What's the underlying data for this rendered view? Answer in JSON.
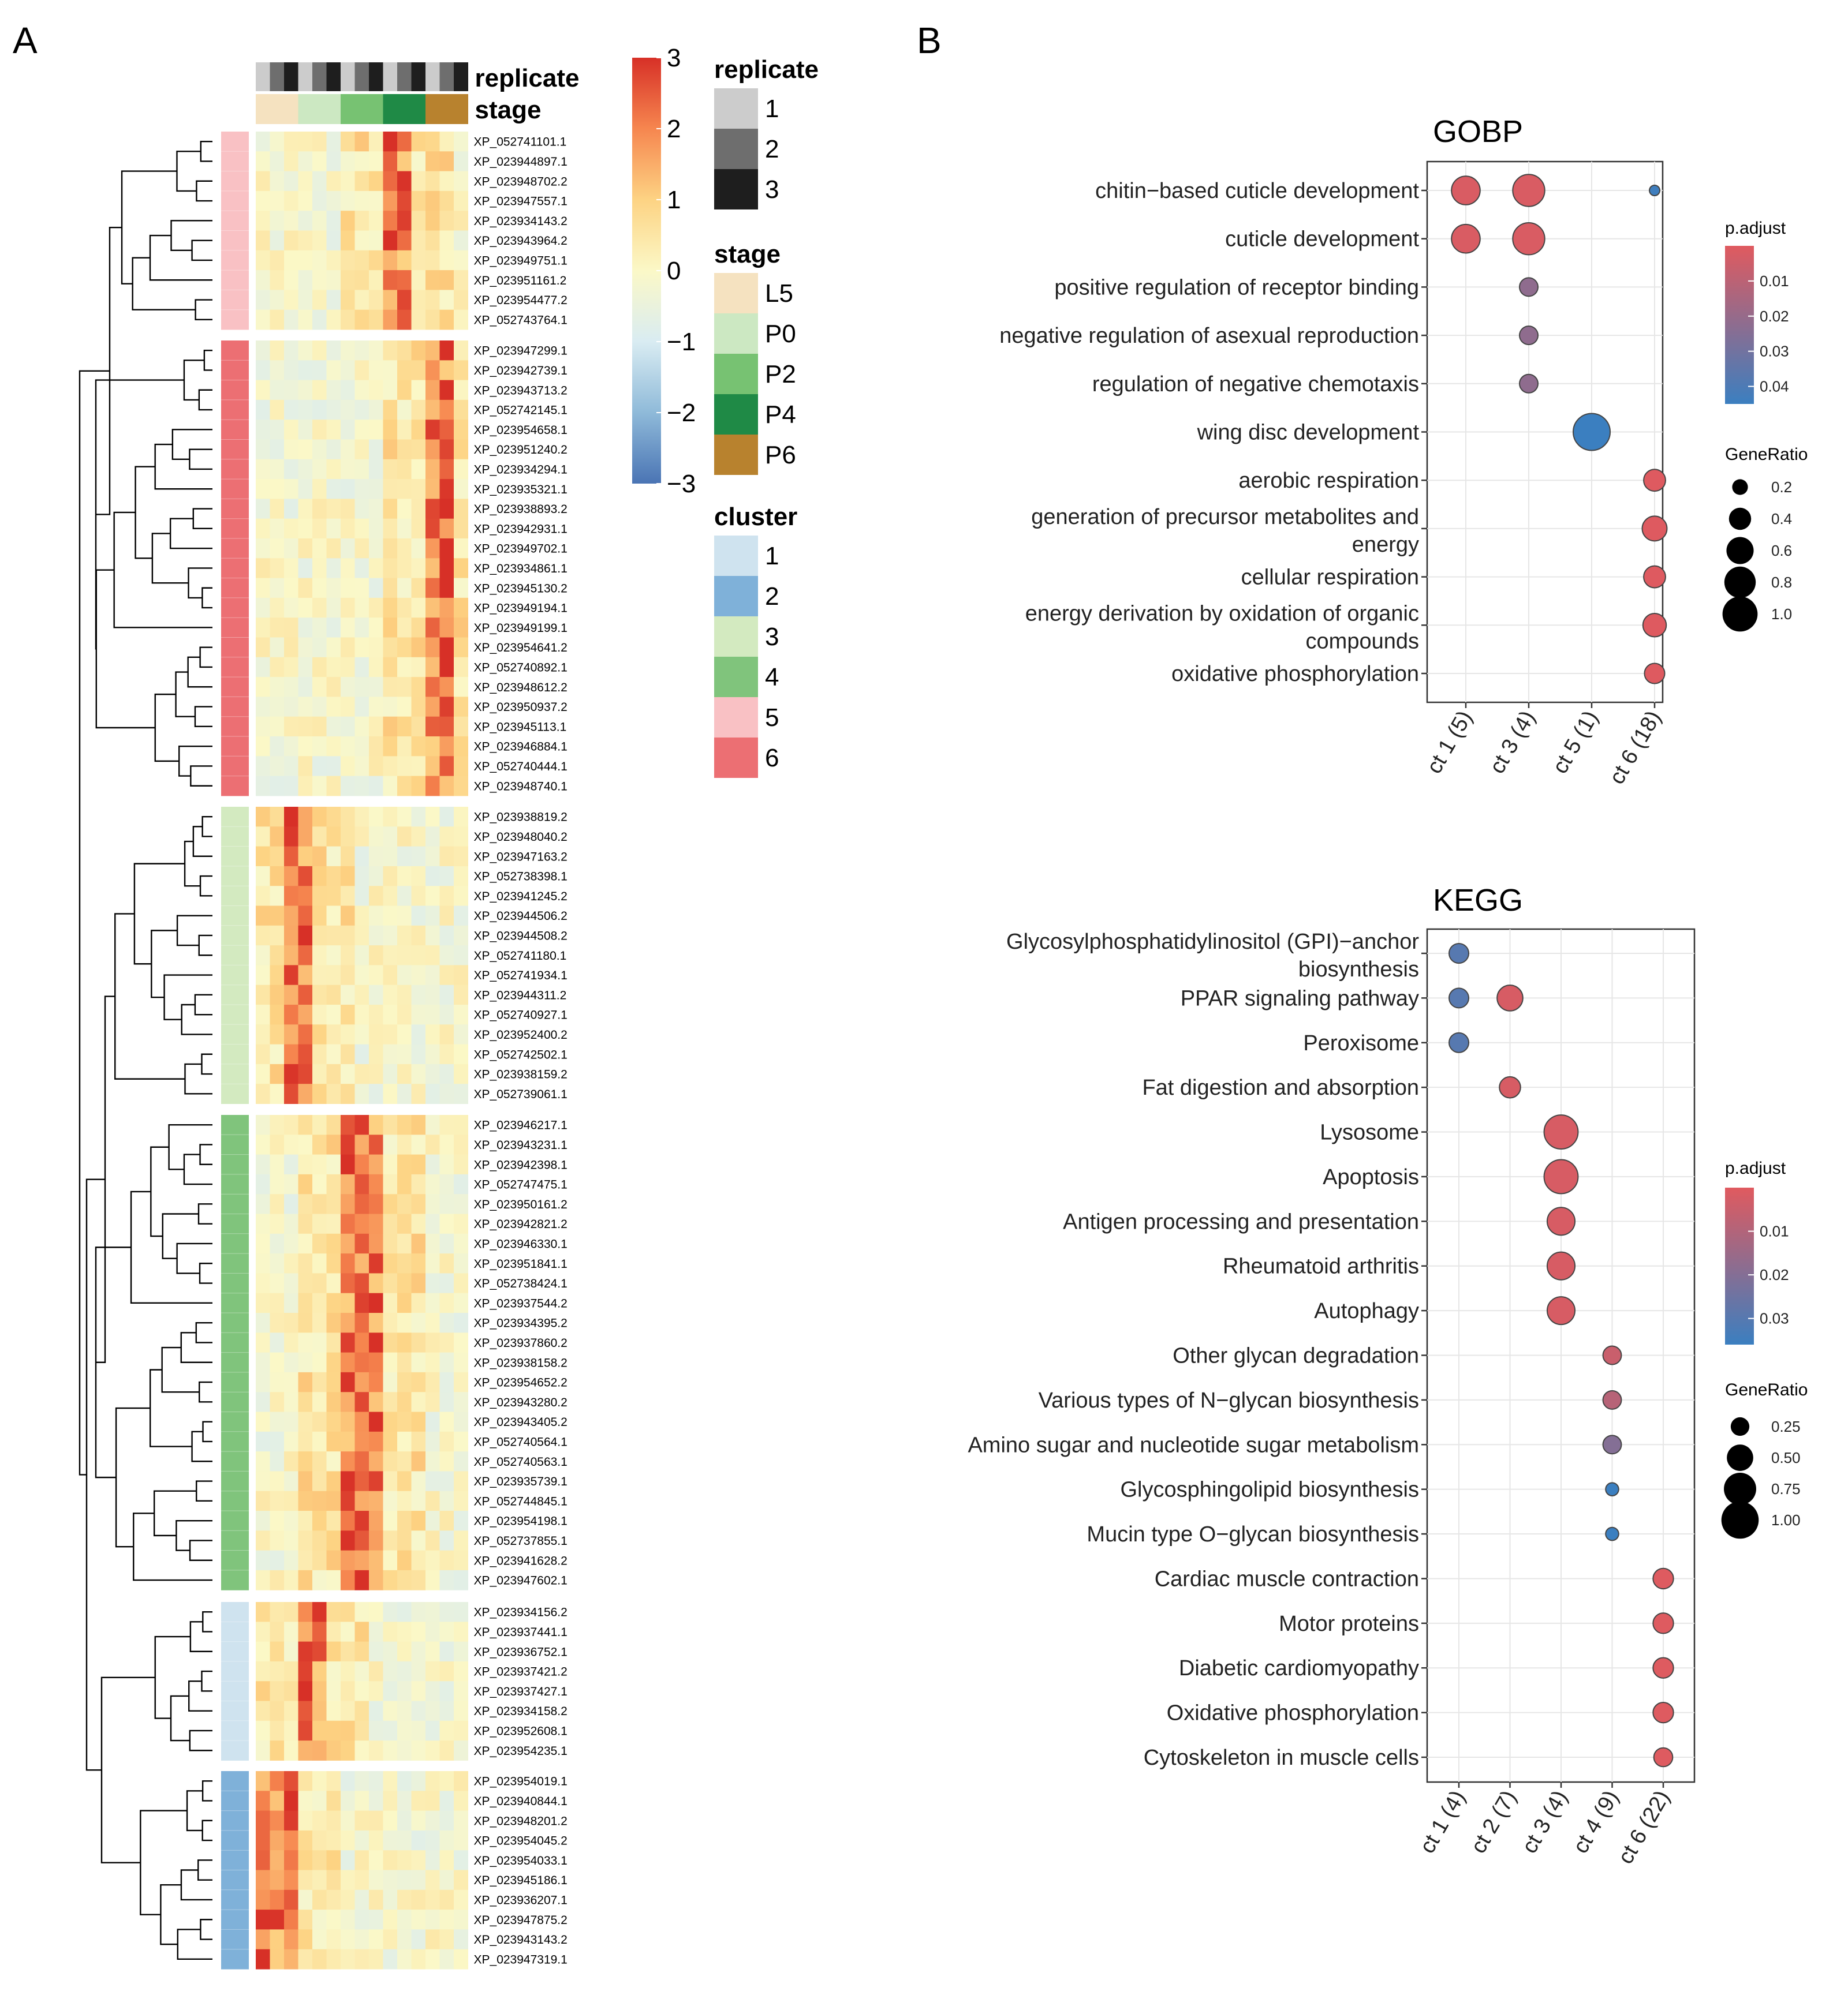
{
  "panel_a_letter": "A",
  "panel_b_letter": "B",
  "chart_data": [
    {
      "type": "heatmap",
      "title": "",
      "column_annotations": {
        "replicate_title": "replicate",
        "stage_title": "stage",
        "replicate": [
          1,
          2,
          3,
          1,
          2,
          3,
          1,
          2,
          3,
          1,
          2,
          3,
          1,
          2,
          3
        ],
        "stage": [
          "L5",
          "L5",
          "L5",
          "P0",
          "P0",
          "P0",
          "P2",
          "P2",
          "P2",
          "P4",
          "P4",
          "P4",
          "P6",
          "P6",
          "P6"
        ]
      },
      "color_scale": {
        "min": -3,
        "max": 3,
        "ticks": [
          3,
          2,
          1,
          0,
          -1,
          -2,
          -3
        ]
      },
      "legends": {
        "replicate": {
          "title": "replicate",
          "items": [
            {
              "label": "1",
              "color": "#cccccc"
            },
            {
              "label": "2",
              "color": "#6e6e6e"
            },
            {
              "label": "3",
              "color": "#1e1e1e"
            }
          ]
        },
        "stage": {
          "title": "stage",
          "items": [
            {
              "label": "L5",
              "color": "#f5e2c0"
            },
            {
              "label": "P0",
              "color": "#cce8c2"
            },
            {
              "label": "P2",
              "color": "#77c272"
            },
            {
              "label": "P4",
              "color": "#1f8a46"
            },
            {
              "label": "P6",
              "color": "#b8822e"
            }
          ]
        },
        "cluster": {
          "title": "cluster",
          "items": [
            {
              "label": "1",
              "color": "#cfe3ef"
            },
            {
              "label": "2",
              "color": "#7fb1d9"
            },
            {
              "label": "3",
              "color": "#d3eac0"
            },
            {
              "label": "4",
              "color": "#80c47c"
            },
            {
              "label": "5",
              "color": "#f9c1c4"
            },
            {
              "label": "6",
              "color": "#ec6f73"
            }
          ]
        }
      },
      "clusters": [
        {
          "cluster": 5,
          "peak": [
            9,
            10
          ],
          "genes": [
            "XP_052741101.1",
            "XP_023944897.1",
            "XP_023948702.2",
            "XP_023947557.1",
            "XP_023934143.2",
            "XP_023943964.2",
            "XP_023949751.1",
            "XP_023951161.2",
            "XP_023954477.2",
            "XP_052743764.1"
          ]
        },
        {
          "cluster": 6,
          "peak": [
            12,
            13
          ],
          "genes": [
            "XP_023947299.1",
            "XP_023942739.1",
            "XP_023943713.2",
            "XP_052742145.1",
            "XP_023954658.1",
            "XP_023951240.2",
            "XP_023934294.1",
            "XP_023935321.1",
            "XP_023938893.2",
            "XP_023942931.1",
            "XP_023949702.1",
            "XP_023934861.1",
            "XP_023945130.2",
            "XP_023949194.1",
            "XP_023949199.1",
            "XP_023954641.2",
            "XP_052740892.1",
            "XP_023948612.2",
            "XP_023950937.2",
            "XP_023945113.1",
            "XP_023946884.1",
            "XP_052740444.1",
            "XP_023948740.1"
          ]
        },
        {
          "cluster": 3,
          "peak": [
            2,
            3
          ],
          "genes": [
            "XP_023938819.2",
            "XP_023948040.2",
            "XP_023947163.2",
            "XP_052738398.1",
            "XP_023941245.2",
            "XP_023944506.2",
            "XP_023944508.2",
            "XP_052741180.1",
            "XP_052741934.1",
            "XP_023944311.2",
            "XP_052740927.1",
            "XP_023952400.2",
            "XP_052742502.1",
            "XP_023938159.2",
            "XP_052739061.1"
          ]
        },
        {
          "cluster": 4,
          "peak": [
            6,
            7,
            8
          ],
          "genes": [
            "XP_023946217.1",
            "XP_023943231.1",
            "XP_023942398.1",
            "XP_052747475.1",
            "XP_023950161.2",
            "XP_023942821.2",
            "XP_023946330.1",
            "XP_023951841.1",
            "XP_052738424.1",
            "XP_023937544.2",
            "XP_023934395.2",
            "XP_023937860.2",
            "XP_023938158.2",
            "XP_023954652.2",
            "XP_023943280.2",
            "XP_023943405.2",
            "XP_052740564.1",
            "XP_052740563.1",
            "XP_023935739.1",
            "XP_052744845.1",
            "XP_023954198.1",
            "XP_052737855.1",
            "XP_023941628.2",
            "XP_023947602.1"
          ]
        },
        {
          "cluster": 1,
          "peak": [
            3,
            4
          ],
          "genes": [
            "XP_023934156.2",
            "XP_023937441.1",
            "XP_023936752.1",
            "XP_023937421.2",
            "XP_023937427.1",
            "XP_023934158.2",
            "XP_023952608.1",
            "XP_023954235.1"
          ]
        },
        {
          "cluster": 2,
          "peak": [
            0,
            1,
            2
          ],
          "genes": [
            "XP_023954019.1",
            "XP_023940844.1",
            "XP_023948201.2",
            "XP_023954045.2",
            "XP_023954033.1",
            "XP_023945186.1",
            "XP_023936207.1",
            "XP_023947875.2",
            "XP_023943143.2",
            "XP_023947319.1"
          ]
        }
      ]
    },
    {
      "type": "scatter",
      "title": "GOBP",
      "categories": [
        "ct 1 (5)",
        "ct 3 (4)",
        "ct 5 (1)",
        "ct 6 (18)"
      ],
      "terms": [
        "chitin−based cuticle development",
        "cuticle development",
        "positive regulation of receptor binding",
        "negative regulation of asexual reproduction",
        "regulation of negative chemotaxis",
        "wing disc development",
        "aerobic respiration",
        "generation of precursor metabolites and energy",
        "cellular respiration",
        "energy derivation by oxidation of organic compounds",
        "oxidative phosphorylation"
      ],
      "points": [
        {
          "term": 0,
          "cat": 0,
          "ratio": 0.6,
          "padj": 0.002
        },
        {
          "term": 0,
          "cat": 1,
          "ratio": 0.75,
          "padj": 0.002
        },
        {
          "term": 0,
          "cat": 3,
          "ratio": 0.06,
          "padj": 0.044
        },
        {
          "term": 1,
          "cat": 0,
          "ratio": 0.6,
          "padj": 0.002
        },
        {
          "term": 1,
          "cat": 1,
          "ratio": 0.75,
          "padj": 0.002
        },
        {
          "term": 2,
          "cat": 1,
          "ratio": 0.25,
          "padj": 0.022
        },
        {
          "term": 3,
          "cat": 1,
          "ratio": 0.25,
          "padj": 0.022
        },
        {
          "term": 4,
          "cat": 1,
          "ratio": 0.25,
          "padj": 0.022
        },
        {
          "term": 5,
          "cat": 2,
          "ratio": 1.0,
          "padj": 0.045
        },
        {
          "term": 6,
          "cat": 3,
          "ratio": 0.35,
          "padj": 0.0005
        },
        {
          "term": 7,
          "cat": 3,
          "ratio": 0.45,
          "padj": 0.0005
        },
        {
          "term": 8,
          "cat": 3,
          "ratio": 0.35,
          "padj": 0.0005
        },
        {
          "term": 9,
          "cat": 3,
          "ratio": 0.4,
          "padj": 0.0005
        },
        {
          "term": 10,
          "cat": 3,
          "ratio": 0.3,
          "padj": 0.0005
        }
      ],
      "color_legend": {
        "title": "p.adjust",
        "min": 0,
        "max": 0.045,
        "ticks": [
          0.01,
          0.02,
          0.03,
          0.04
        ],
        "tick_labels": [
          "0.01",
          "0.02",
          "0.03",
          "0.04"
        ],
        "low_color": "#e05a5f",
        "high_color": "#3b7fc0"
      },
      "size_legend": {
        "title": "GeneRatio",
        "values": [
          0.2,
          0.4,
          0.6,
          0.8,
          1.0
        ],
        "labels": [
          "0.2",
          "0.4",
          "0.6",
          "0.8",
          "1.0"
        ],
        "max": 1.0
      }
    },
    {
      "type": "scatter",
      "title": "KEGG",
      "categories": [
        "ct 1 (4)",
        "ct 2 (7)",
        "ct 3 (4)",
        "ct 4 (9)",
        "ct 6 (22)"
      ],
      "terms": [
        "Glycosylphosphatidylinositol (GPI)−anchor biosynthesis",
        "PPAR signaling pathway",
        "Peroxisome",
        "Fat digestion and absorption",
        "Lysosome",
        "Apoptosis",
        "Antigen processing and presentation",
        "Rheumatoid arthritis",
        "Autophagy",
        "Other glycan degradation",
        "Various types of N−glycan biosynthesis",
        "Amino sugar and nucleotide sugar metabolism",
        "Glycosphingolipid biosynthesis",
        "Mucin type O−glycan biosynthesis",
        "Cardiac muscle contraction",
        "Motor proteins",
        "Diabetic cardiomyopathy",
        "Oxidative phosphorylation",
        "Cytoskeleton in muscle cells"
      ],
      "points": [
        {
          "term": 0,
          "cat": 0,
          "ratio": 0.25,
          "padj": 0.03
        },
        {
          "term": 1,
          "cat": 0,
          "ratio": 0.25,
          "padj": 0.03
        },
        {
          "term": 1,
          "cat": 1,
          "ratio": 0.43,
          "padj": 0.002
        },
        {
          "term": 2,
          "cat": 0,
          "ratio": 0.25,
          "padj": 0.03
        },
        {
          "term": 3,
          "cat": 1,
          "ratio": 0.29,
          "padj": 0.002
        },
        {
          "term": 4,
          "cat": 2,
          "ratio": 0.75,
          "padj": 0.002
        },
        {
          "term": 5,
          "cat": 2,
          "ratio": 0.75,
          "padj": 0.002
        },
        {
          "term": 6,
          "cat": 2,
          "ratio": 0.5,
          "padj": 0.002
        },
        {
          "term": 7,
          "cat": 2,
          "ratio": 0.5,
          "padj": 0.002
        },
        {
          "term": 8,
          "cat": 2,
          "ratio": 0.5,
          "padj": 0.002
        },
        {
          "term": 9,
          "cat": 3,
          "ratio": 0.22,
          "padj": 0.005
        },
        {
          "term": 10,
          "cat": 3,
          "ratio": 0.22,
          "padj": 0.009
        },
        {
          "term": 11,
          "cat": 3,
          "ratio": 0.22,
          "padj": 0.02
        },
        {
          "term": 12,
          "cat": 3,
          "ratio": 0.11,
          "padj": 0.038
        },
        {
          "term": 13,
          "cat": 3,
          "ratio": 0.11,
          "padj": 0.038
        },
        {
          "term": 14,
          "cat": 4,
          "ratio": 0.27,
          "padj": 0.0005
        },
        {
          "term": 15,
          "cat": 4,
          "ratio": 0.27,
          "padj": 0.0005
        },
        {
          "term": 16,
          "cat": 4,
          "ratio": 0.27,
          "padj": 0.0005
        },
        {
          "term": 17,
          "cat": 4,
          "ratio": 0.27,
          "padj": 0.0005
        },
        {
          "term": 18,
          "cat": 4,
          "ratio": 0.23,
          "padj": 0.0005
        }
      ],
      "color_legend": {
        "title": "p.adjust",
        "min": 0,
        "max": 0.036,
        "ticks": [
          0.01,
          0.02,
          0.03
        ],
        "tick_labels": [
          "0.01",
          "0.02",
          "0.03"
        ],
        "low_color": "#e05a5f",
        "high_color": "#3b7fc0"
      },
      "size_legend": {
        "title": "GeneRatio",
        "values": [
          0.25,
          0.5,
          0.75,
          1.0
        ],
        "labels": [
          "0.25",
          "0.50",
          "0.75",
          "1.00"
        ],
        "max": 1.0
      }
    }
  ]
}
